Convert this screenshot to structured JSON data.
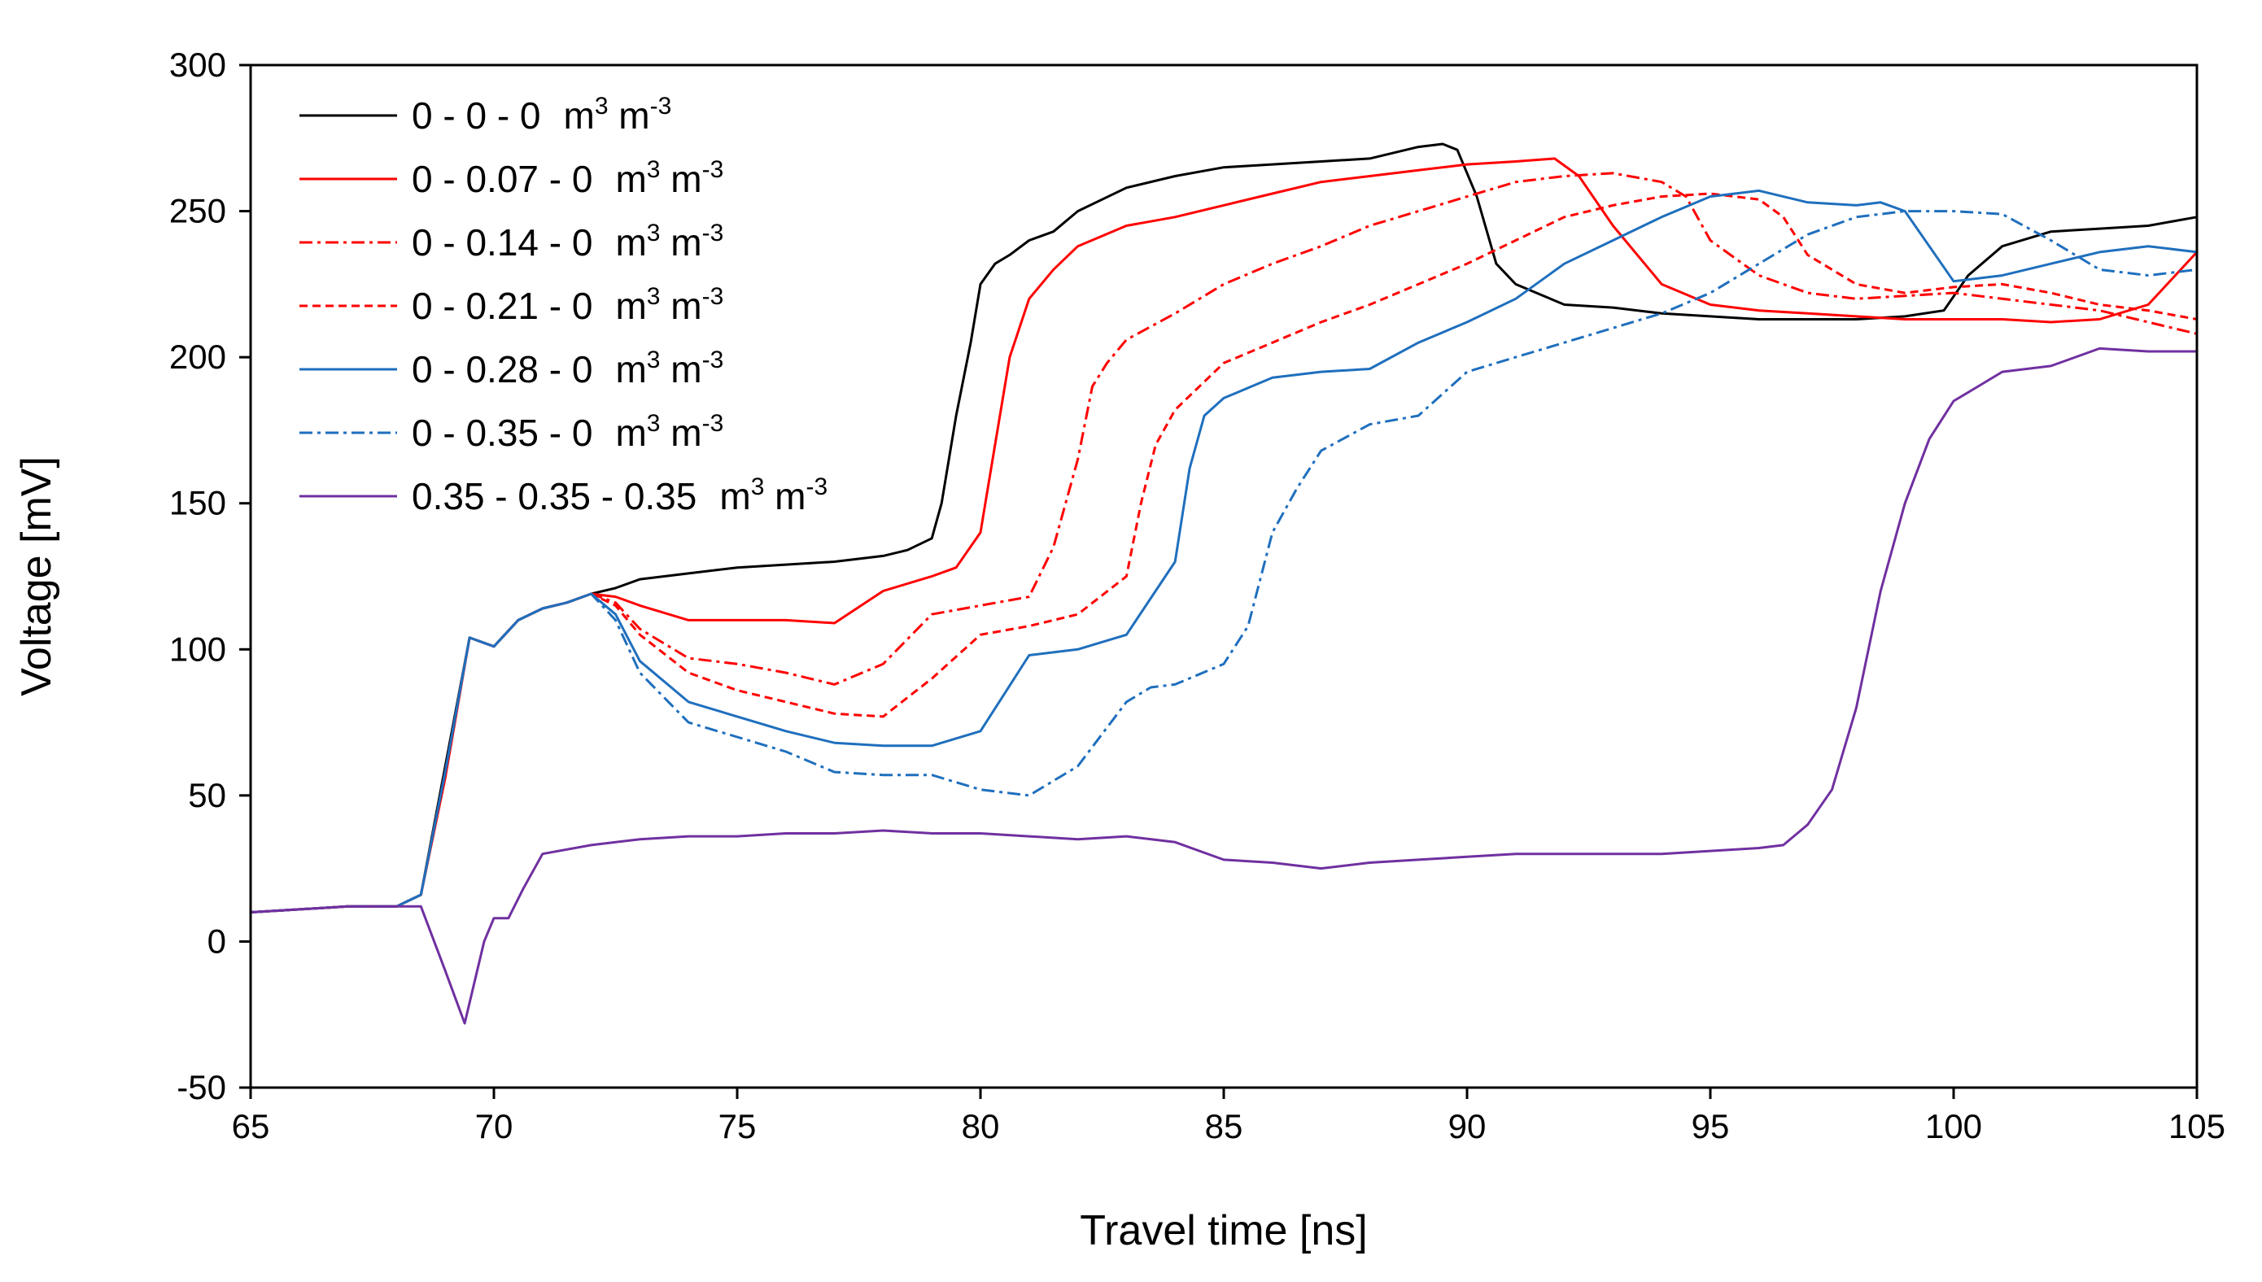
{
  "chart_data": {
    "type": "line",
    "title": "",
    "xlabel": "Travel time [ns]",
    "ylabel": "Voltage [mV]",
    "xlim": [
      65,
      105
    ],
    "ylim": [
      -50,
      300
    ],
    "xticks": [
      65,
      70,
      75,
      80,
      85,
      90,
      95,
      100,
      105
    ],
    "yticks": [
      -50,
      0,
      50,
      100,
      150,
      200,
      250,
      300
    ],
    "grid": false,
    "legend_position": "top-left",
    "unit_text": "m",
    "unit_exp1": "3",
    "unit_text2": " m",
    "unit_exp2": "-3",
    "series": [
      {
        "name": "0 - 0 - 0",
        "color": "#000000",
        "dash": "solid",
        "x": [
          65,
          66,
          67,
          68,
          68.5,
          69,
          69.5,
          70,
          70.5,
          71,
          71.5,
          72,
          72.5,
          73,
          74,
          75,
          76,
          77,
          78,
          78.5,
          79,
          79.2,
          79.5,
          79.8,
          80,
          80.3,
          80.6,
          81,
          81.5,
          82,
          83,
          84,
          85,
          86,
          87,
          88,
          89,
          89.5,
          89.8,
          90.2,
          90.6,
          91,
          92,
          93,
          94,
          95,
          96,
          97,
          98,
          99,
          99.8,
          100.3,
          101,
          102,
          103,
          104,
          105
        ],
        "y": [
          10,
          11,
          12,
          12,
          16,
          60,
          104,
          101,
          110,
          114,
          116,
          119,
          121,
          124,
          126,
          128,
          129,
          130,
          132,
          134,
          138,
          150,
          180,
          205,
          225,
          232,
          235,
          240,
          243,
          250,
          258,
          262,
          265,
          266,
          267,
          268,
          272,
          273,
          271,
          255,
          232,
          225,
          218,
          217,
          215,
          214,
          213,
          213,
          213,
          214,
          216,
          228,
          238,
          243,
          244,
          245,
          248
        ]
      },
      {
        "name": "0 - 0.07 - 0",
        "color": "#ff0000",
        "dash": "solid",
        "x": [
          65,
          66,
          67,
          68,
          68.5,
          69,
          69.5,
          70,
          70.5,
          71,
          71.5,
          72,
          72.5,
          73,
          74,
          75,
          76,
          77,
          78,
          79,
          79.5,
          80,
          80.3,
          80.6,
          81,
          81.5,
          82,
          83,
          84,
          85,
          86,
          87,
          88,
          89,
          90,
          91,
          91.8,
          92.3,
          93,
          94,
          95,
          96,
          97,
          98,
          99,
          100,
          101,
          102,
          103,
          104,
          105
        ],
        "y": [
          10,
          11,
          12,
          12,
          16,
          56,
          104,
          101,
          110,
          114,
          116,
          119,
          118,
          115,
          110,
          110,
          110,
          109,
          120,
          125,
          128,
          140,
          170,
          200,
          220,
          230,
          238,
          245,
          248,
          252,
          256,
          260,
          262,
          264,
          266,
          267,
          268,
          262,
          245,
          225,
          218,
          216,
          215,
          214,
          213,
          213,
          213,
          212,
          213,
          218,
          236
        ]
      },
      {
        "name": "0 - 0.14 - 0",
        "color": "#ff0000",
        "dash": "dashdot",
        "x": [
          65,
          66,
          67,
          68,
          68.5,
          69,
          69.5,
          70,
          70.5,
          71,
          71.5,
          72,
          72.5,
          73,
          74,
          75,
          76,
          77,
          78,
          79,
          80,
          81,
          81.5,
          82,
          82.3,
          82.6,
          83,
          84,
          85,
          86,
          87,
          88,
          89,
          90,
          91,
          92,
          93,
          94,
          94.5,
          95,
          96,
          97,
          98,
          99,
          100,
          101,
          102,
          103,
          104,
          105
        ],
        "y": [
          10,
          11,
          12,
          12,
          16,
          58,
          104,
          101,
          110,
          114,
          116,
          119,
          116,
          107,
          97,
          95,
          92,
          88,
          95,
          112,
          115,
          118,
          135,
          165,
          190,
          198,
          206,
          215,
          225,
          232,
          238,
          245,
          250,
          255,
          260,
          262,
          263,
          260,
          255,
          240,
          228,
          222,
          220,
          221,
          222,
          220,
          218,
          216,
          212,
          208
        ]
      },
      {
        "name": "0 - 0.21 - 0",
        "color": "#ff0000",
        "dash": "dash",
        "x": [
          65,
          66,
          67,
          68,
          68.5,
          69,
          69.5,
          70,
          70.5,
          71,
          71.5,
          72,
          72.5,
          73,
          74,
          75,
          76,
          77,
          78,
          79,
          80,
          81,
          82,
          83,
          83.3,
          83.6,
          84,
          85,
          86,
          87,
          88,
          89,
          90,
          91,
          92,
          93,
          94,
          95,
          96,
          96.5,
          97,
          98,
          99,
          100,
          101,
          102,
          103,
          104,
          105
        ],
        "y": [
          10,
          11,
          12,
          12,
          16,
          58,
          104,
          101,
          110,
          114,
          116,
          119,
          115,
          105,
          92,
          86,
          82,
          78,
          77,
          90,
          105,
          108,
          112,
          125,
          150,
          170,
          182,
          198,
          205,
          212,
          218,
          225,
          232,
          240,
          248,
          252,
          255,
          256,
          254,
          248,
          235,
          225,
          222,
          224,
          225,
          222,
          218,
          216,
          213
        ]
      },
      {
        "name": "0 - 0.28 - 0",
        "color": "#1f6fbd",
        "dash": "solid",
        "x": [
          65,
          66,
          67,
          68,
          68.5,
          69,
          69.5,
          70,
          70.5,
          71,
          71.5,
          72,
          72.5,
          73,
          74,
          75,
          76,
          77,
          78,
          79,
          80,
          80.5,
          81,
          82,
          83,
          84,
          84.3,
          84.6,
          85,
          86,
          87,
          88,
          89,
          90,
          91,
          92,
          93,
          94,
          95,
          96,
          97,
          98,
          98.5,
          99,
          99.5,
          100,
          101,
          102,
          103,
          104,
          105
        ],
        "y": [
          10,
          11,
          12,
          12,
          16,
          58,
          104,
          101,
          110,
          114,
          116,
          119,
          112,
          96,
          82,
          77,
          72,
          68,
          67,
          67,
          72,
          85,
          98,
          100,
          105,
          130,
          162,
          180,
          186,
          193,
          195,
          196,
          205,
          212,
          220,
          232,
          240,
          248,
          255,
          257,
          253,
          252,
          253,
          250,
          238,
          226,
          228,
          232,
          236,
          238,
          236
        ]
      },
      {
        "name": "0 - 0.35 - 0",
        "color": "#1f6fbd",
        "dash": "dashdot",
        "x": [
          65,
          66,
          67,
          68,
          68.5,
          69,
          69.5,
          70,
          70.5,
          71,
          71.5,
          72,
          72.5,
          73,
          74,
          75,
          76,
          77,
          78,
          79,
          80,
          81,
          82,
          83,
          83.5,
          84,
          85,
          85.5,
          86,
          86.5,
          87,
          88,
          89,
          90,
          91,
          92,
          93,
          94,
          95,
          96,
          97,
          98,
          99,
          100,
          101,
          102,
          103,
          104,
          105
        ],
        "y": [
          10,
          11,
          12,
          12,
          16,
          58,
          104,
          101,
          110,
          114,
          116,
          119,
          110,
          92,
          75,
          70,
          65,
          58,
          57,
          57,
          52,
          50,
          60,
          82,
          87,
          88,
          95,
          108,
          140,
          155,
          168,
          177,
          180,
          195,
          200,
          205,
          210,
          215,
          222,
          232,
          242,
          248,
          250,
          250,
          249,
          240,
          230,
          228,
          230
        ]
      },
      {
        "name": "0.35 - 0.35 - 0.35",
        "color": "#7030a0",
        "dash": "solid",
        "x": [
          65,
          66,
          67,
          68,
          68.5,
          69,
          69.4,
          69.8,
          70,
          70.3,
          70.6,
          71,
          72,
          73,
          74,
          75,
          76,
          77,
          78,
          79,
          80,
          81,
          82,
          83,
          84,
          85,
          86,
          87,
          88,
          89,
          90,
          91,
          92,
          93,
          94,
          95,
          96,
          96.5,
          97,
          97.5,
          98,
          98.5,
          99,
          99.5,
          100,
          100.5,
          101,
          102,
          103,
          104,
          105
        ],
        "y": [
          10,
          11,
          12,
          12,
          12,
          -10,
          -28,
          0,
          8,
          8,
          18,
          30,
          33,
          35,
          36,
          36,
          37,
          37,
          38,
          37,
          37,
          36,
          35,
          36,
          34,
          28,
          27,
          25,
          27,
          28,
          29,
          30,
          30,
          30,
          30,
          31,
          32,
          33,
          40,
          52,
          80,
          120,
          150,
          172,
          185,
          190,
          195,
          197,
          203,
          202,
          202
        ]
      }
    ]
  }
}
